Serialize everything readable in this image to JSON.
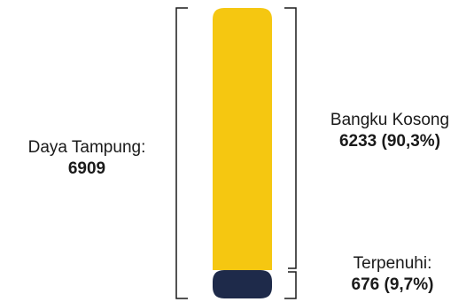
{
  "chart_data": {
    "type": "bar",
    "orientation": "stacked-vertical",
    "total_label": "Daya Tampung:",
    "total_value": "6909",
    "total": 6909,
    "segments": [
      {
        "key": "vacant",
        "label": "Bangku Kosong",
        "value_text": "6233 (90,3%)",
        "value": 6233,
        "percent": 90.3,
        "color": "#F5C711"
      },
      {
        "key": "filled",
        "label": "Terpenuhi:",
        "value_text": "676 (9,7%)",
        "value": 676,
        "percent": 9.7,
        "color": "#1E2A4A"
      }
    ]
  },
  "colors": {
    "bracket": "#1a1a1a"
  }
}
